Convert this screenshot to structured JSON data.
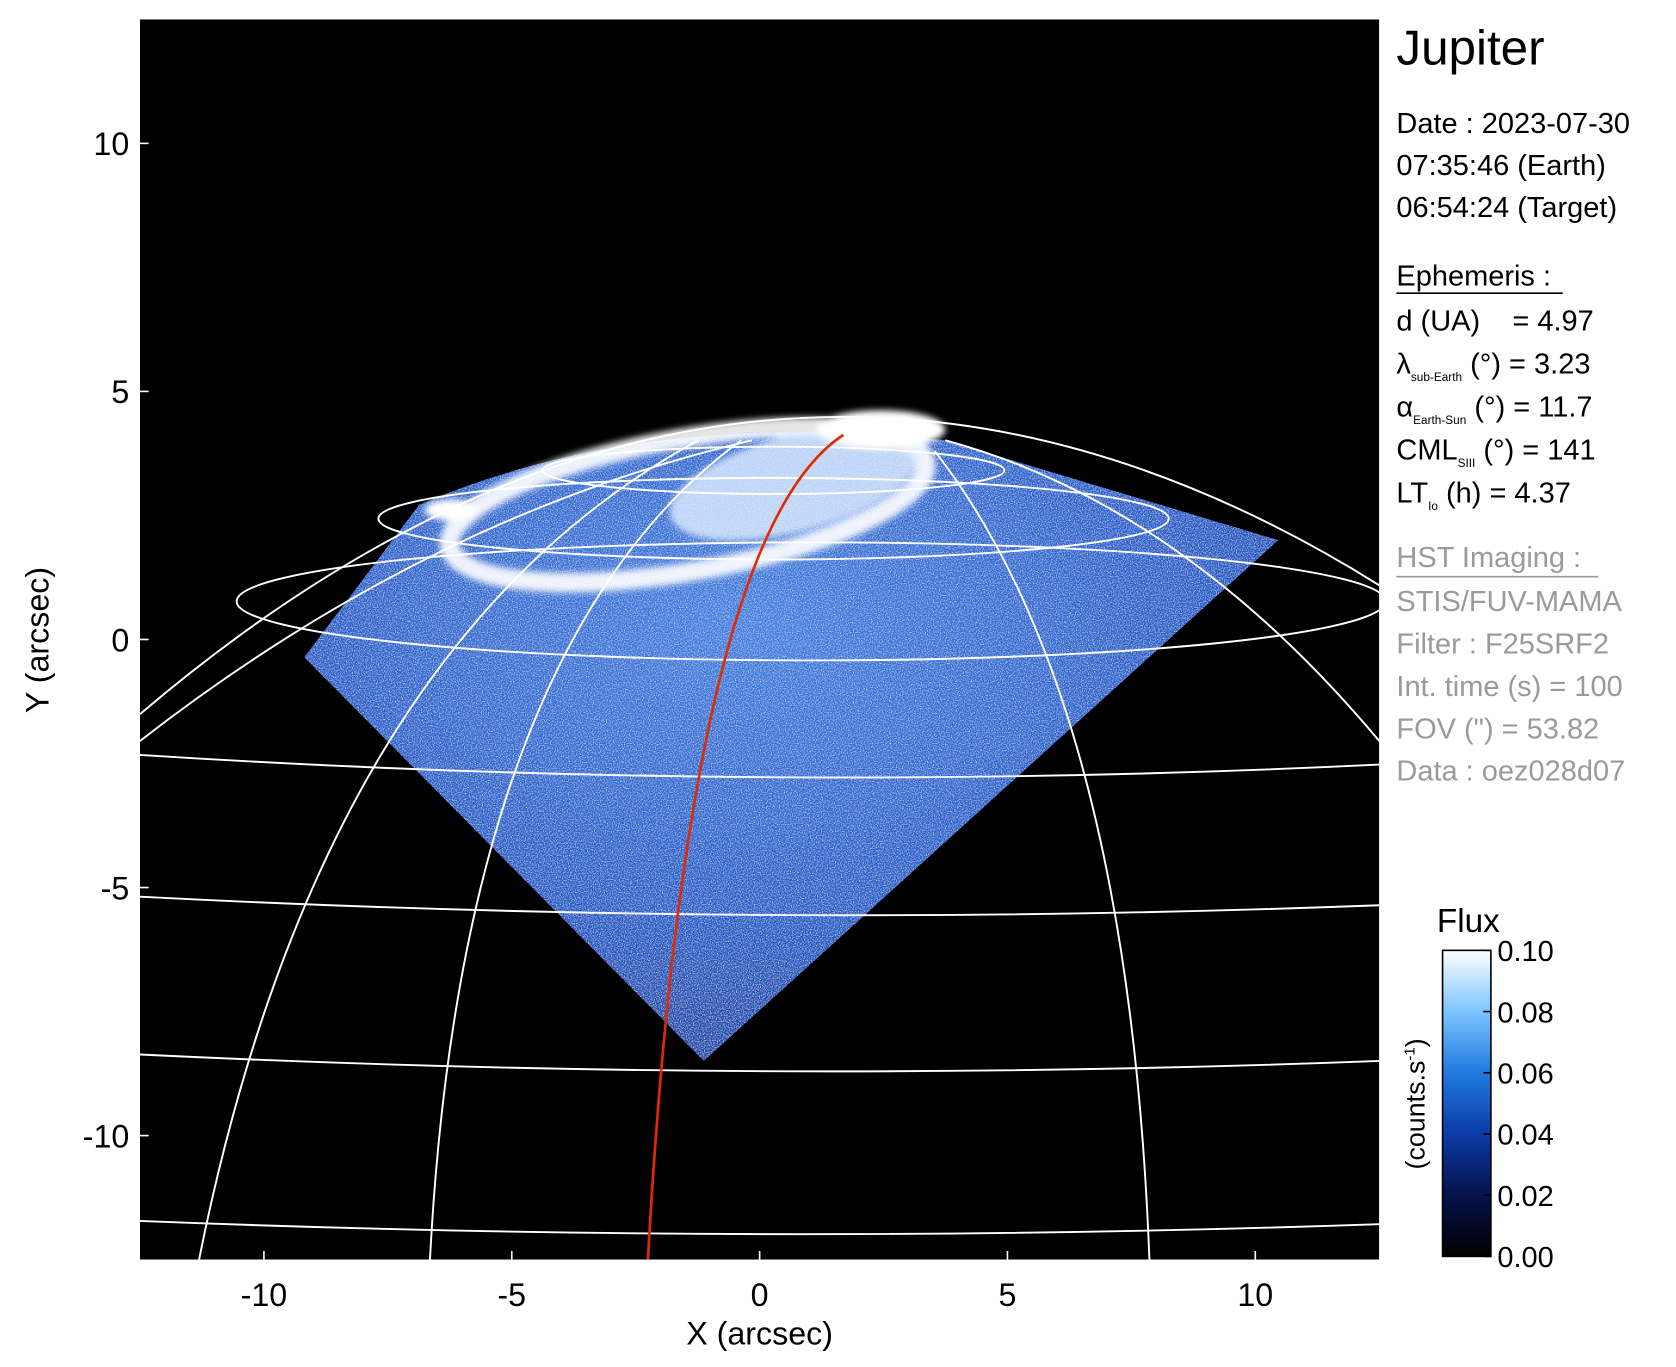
{
  "chart_data": {
    "type": "image",
    "xlabel": "X (arcsec)",
    "ylabel": "Y (arcsec)",
    "xlim": [
      -12.5,
      12.5
    ],
    "ylim": [
      -12.5,
      12.5
    ],
    "xticks": [
      -10,
      -5,
      0,
      5,
      10
    ],
    "yticks": [
      -10,
      -5,
      0,
      5,
      10
    ],
    "colorbar": {
      "title": "Flux",
      "label": "(counts.s",
      "label_sup": "-1",
      "label_end": ")",
      "lim": [
        0,
        0.1
      ],
      "ticks": [
        {
          "value": 0,
          "label": "0.00"
        },
        {
          "value": 0.02,
          "label": "0.02"
        },
        {
          "value": 0.04,
          "label": "0.04"
        },
        {
          "value": 0.06,
          "label": "0.06"
        },
        {
          "value": 0.08,
          "label": "0.08"
        },
        {
          "value": 0.1,
          "label": "0.10"
        }
      ],
      "colors": [
        "#000000",
        "#06124a",
        "#0c3aa8",
        "#1f7ae0",
        "#7cc4ff",
        "#ffffff"
      ]
    }
  },
  "info": {
    "title": "Jupiter",
    "date_lines": [
      "Date : 2023-07-30",
      "07:35:46 (Earth)",
      "06:54:24 (Target)"
    ],
    "ephemeris": {
      "heading": "Ephemeris :",
      "rows": [
        {
          "text": "d (UA)    = 4.97"
        },
        {
          "symbol": "λ",
          "sub": "sub-Earth",
          "text": " (°) = 3.23"
        },
        {
          "symbol": "α",
          "sub": "Earth-Sun",
          "text": " (°) = 11.7"
        },
        {
          "symbol": "CML",
          "sub": "SIII",
          "text": " (°) = 141"
        },
        {
          "symbol": "LT",
          "sub": "Io",
          "text": " (h) = 4.37"
        }
      ]
    },
    "imaging": {
      "heading": "HST Imaging :",
      "lines": [
        "STIS/FUV-MAMA",
        "Filter : F25SRF2",
        "Int. time (s) = 100",
        "FOV (\") = 53.82",
        "Data : oez028d07"
      ]
    }
  }
}
